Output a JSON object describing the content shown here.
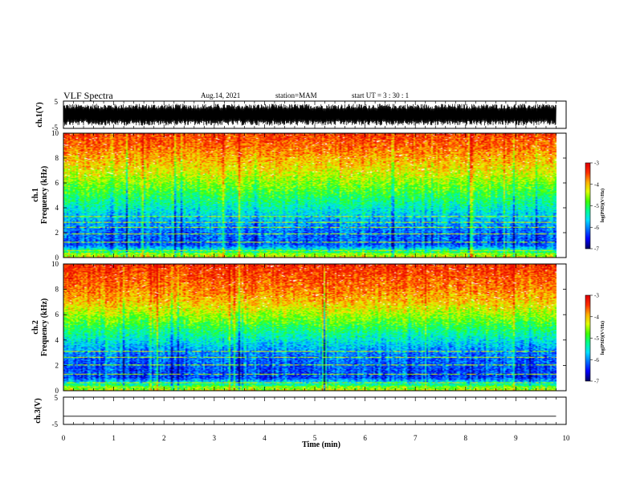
{
  "header": {
    "title": "VLF Spectra",
    "date": "Aug.14, 2021",
    "station": "station=MAM",
    "start": "start  UT  =   3  : 30 : 1"
  },
  "chart_data": [
    {
      "type": "line",
      "panel": "ch1-waveform",
      "ylabel": "ch.1(V)",
      "xlim": [
        0,
        10
      ],
      "ylim": [
        -5,
        5
      ],
      "yticks": [
        "5",
        "-5"
      ],
      "x_extent": [
        0,
        9.8
      ],
      "description_of_values": "dense oscillating waveform spanning roughly -4 to +4 V",
      "approx_amplitude": 4
    },
    {
      "type": "heatmap",
      "panel": "ch1-spectrogram",
      "ylabel": "ch.1\nFrequency (kHz)",
      "ylabel_line1": "ch.1",
      "ylabel_line2": "Frequency  (kHz)",
      "xlim": [
        0,
        10
      ],
      "ylim": [
        0,
        10
      ],
      "yticks": [
        "0",
        "2",
        "4",
        "6",
        "8",
        "10"
      ],
      "x_extent": [
        0,
        9.8
      ],
      "colorbar": {
        "label": "log(PSD)(V²/Hz)",
        "range": [
          -7,
          -3
        ],
        "ticks": [
          "-3",
          "-4",
          "-5",
          "-6",
          "-7"
        ]
      },
      "profile_by_frequency_khz": {
        "freq": [
          0,
          0.5,
          1,
          2,
          3,
          4,
          5,
          6,
          7,
          8,
          9,
          10
        ],
        "log_psd": [
          -4.2,
          -5.2,
          -6.2,
          -6.1,
          -5.8,
          -5.4,
          -5.0,
          -4.6,
          -4.2,
          -3.9,
          -3.6,
          -3.4
        ]
      },
      "horizontal_lines_khz": [
        0.3,
        0.55,
        1.2,
        1.9,
        2.4,
        2.8,
        3.3
      ]
    },
    {
      "type": "heatmap",
      "panel": "ch2-spectrogram",
      "ylabel_line1": "ch.2",
      "ylabel_line2": "Frequency  (kHz)",
      "xlim": [
        0,
        10
      ],
      "ylim": [
        0,
        10
      ],
      "yticks": [
        "0",
        "2",
        "4",
        "6",
        "8",
        "10"
      ],
      "x_extent": [
        0,
        9.8
      ],
      "colorbar": {
        "label": "log(PSD)(V²/Hz)",
        "range": [
          -7,
          -3
        ],
        "ticks": [
          "-3",
          "-4",
          "-5",
          "-6",
          "-7"
        ]
      },
      "profile_by_frequency_khz": {
        "freq": [
          0,
          0.5,
          1,
          2,
          3,
          4,
          5,
          6,
          7,
          8,
          9,
          10
        ],
        "log_psd": [
          -4.3,
          -5.3,
          -6.3,
          -6.2,
          -6.0,
          -5.5,
          -5.0,
          -4.5,
          -4.0,
          -3.7,
          -3.5,
          -3.3
        ]
      },
      "horizontal_lines_khz": [
        0.3,
        0.6,
        1.3,
        2.0,
        2.6,
        3.1
      ]
    },
    {
      "type": "line",
      "panel": "ch3-waveform",
      "ylabel": "ch.3(V)",
      "xlim": [
        0,
        10
      ],
      "ylim": [
        -5,
        5
      ],
      "yticks": [
        "5",
        "-5"
      ],
      "x": [
        0,
        9.8
      ],
      "y": [
        -2,
        -2
      ]
    }
  ],
  "xaxis": {
    "label": "Time  (min)",
    "ticks": [
      "0",
      "1",
      "2",
      "3",
      "4",
      "5",
      "6",
      "7",
      "8",
      "9",
      "10"
    ]
  },
  "colors": {
    "colormap": [
      "#000066",
      "#0000ff",
      "#0070ff",
      "#00e0ff",
      "#00ff90",
      "#40ff00",
      "#e0ff00",
      "#ffb000",
      "#ff3000",
      "#e00000"
    ]
  }
}
